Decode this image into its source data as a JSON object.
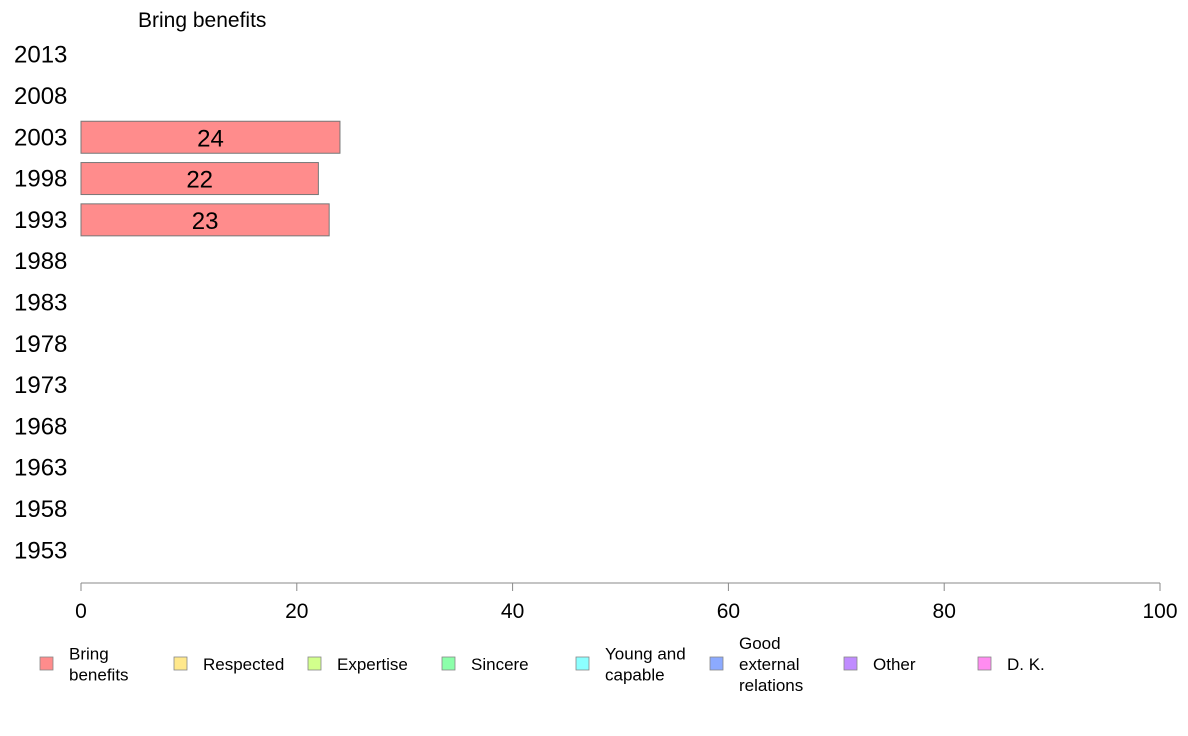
{
  "chart_data": {
    "type": "bar",
    "orientation": "horizontal",
    "title": "Bring benefits",
    "categories": [
      "2013",
      "2008",
      "2003",
      "1998",
      "1993",
      "1988",
      "1983",
      "1978",
      "1973",
      "1968",
      "1963",
      "1958",
      "1953"
    ],
    "series": [
      {
        "name": "Bring benefits",
        "color": "#ff8c8c",
        "values": [
          null,
          null,
          24,
          22,
          23,
          null,
          null,
          null,
          null,
          null,
          null,
          null,
          null
        ]
      }
    ],
    "xlim": [
      0,
      100
    ],
    "xticks": [
      0,
      20,
      40,
      60,
      80,
      100
    ],
    "grid": false,
    "legend_position": "bottom",
    "legend": [
      {
        "label": "Bring benefits",
        "lines": [
          "Bring",
          "benefits"
        ],
        "color": "#ff8c8c"
      },
      {
        "label": "Respected",
        "lines": [
          "Respected"
        ],
        "color": "#ffe88c"
      },
      {
        "label": "Expertise",
        "lines": [
          "Expertise"
        ],
        "color": "#d2ff8c"
      },
      {
        "label": "Sincere",
        "lines": [
          "Sincere"
        ],
        "color": "#8cffaa"
      },
      {
        "label": "Young and capable",
        "lines": [
          "Young and",
          "capable"
        ],
        "color": "#8cffff"
      },
      {
        "label": "Good external relations",
        "lines": [
          "Good",
          "external",
          "relations"
        ],
        "color": "#8caaff"
      },
      {
        "label": "Other",
        "lines": [
          "Other"
        ],
        "color": "#c08cff"
      },
      {
        "label": "D. K.",
        "lines": [
          "D. K."
        ],
        "color": "#ff8cf0"
      }
    ]
  }
}
